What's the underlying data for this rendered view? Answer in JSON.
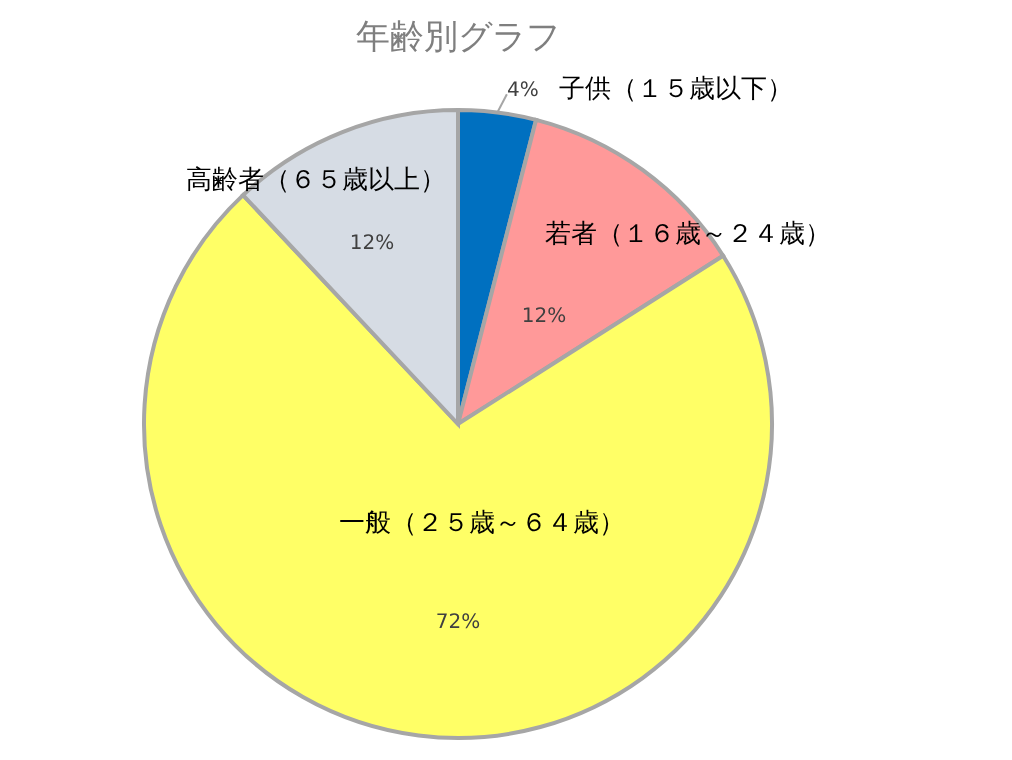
{
  "chart_data": {
    "type": "pie",
    "title": "年齢別グラフ",
    "categories": [
      "子供（１５歳以下）",
      "若者（１６歳～２４歳）",
      "一般（２５歳～６４歳）",
      "高齢者（６５歳以上）"
    ],
    "values": [
      4,
      12,
      72,
      12
    ],
    "value_labels": [
      "4%",
      "12%",
      "72%",
      "12%"
    ],
    "colors": [
      "#0070c0",
      "#ff9999",
      "#ffff66",
      "#d6dce4"
    ]
  }
}
